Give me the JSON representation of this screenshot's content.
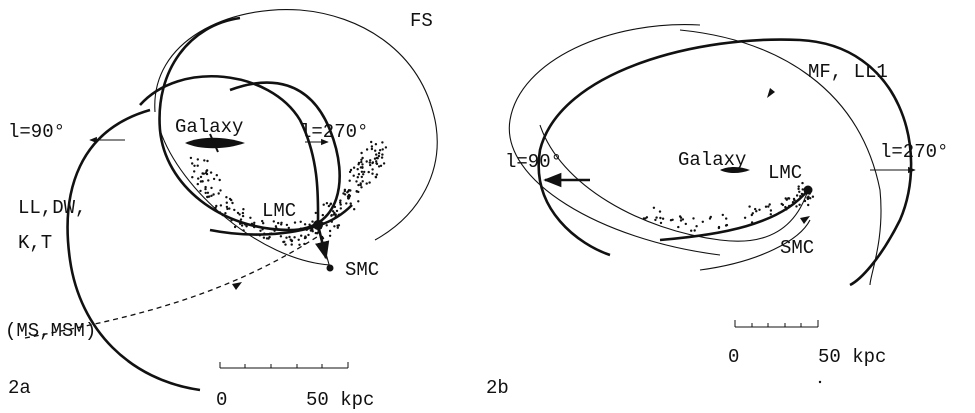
{
  "panel_a": {
    "label": "2a",
    "fs": "FS",
    "l90": "l=90°",
    "galaxy": "Galaxy",
    "l270": "l=270°",
    "ll_dw": "LL,DW,",
    "k_t": "K,T",
    "lmc": "LMC",
    "smc": "SMC",
    "ms": "(MS,MSM)",
    "scale_zero": "0",
    "scale_end": "50 kpc"
  },
  "panel_b": {
    "label": "2b",
    "mf": "MF, LL1",
    "l90": "l=90°",
    "galaxy": "Galaxy",
    "l270": "l=270°",
    "lmc": "LMC",
    "smc": "SMC",
    "scale_zero": "0",
    "scale_end": "50 kpc"
  }
}
